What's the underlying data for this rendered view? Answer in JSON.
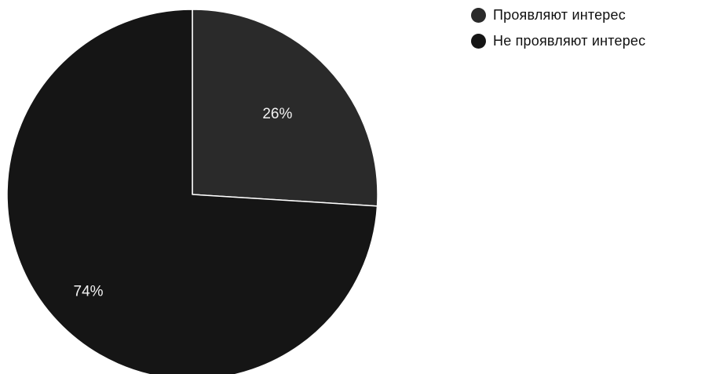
{
  "chart_data": {
    "type": "pie",
    "slices": [
      {
        "label": "Проявляют интерес",
        "value": 26,
        "display": "26%",
        "color": "#2a2a2a"
      },
      {
        "label": "Не проявляют интерес",
        "value": 74,
        "display": "74%",
        "color": "#151515"
      }
    ],
    "start_angle_deg": 0,
    "direction": "clockwise",
    "separator_color": "#ffffff",
    "legend_position": "top-right"
  }
}
